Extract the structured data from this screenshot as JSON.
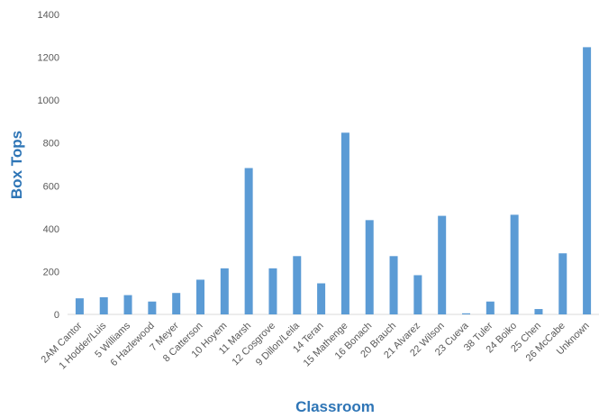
{
  "chart_data": {
    "type": "bar",
    "title": "",
    "xlabel": "Classroom",
    "ylabel": "Box Tops",
    "ylim": [
      0,
      1400
    ],
    "yticks": [
      0,
      200,
      400,
      600,
      800,
      1000,
      1200,
      1400
    ],
    "grid": false,
    "legend": "none",
    "bar_color": "#5b9bd5",
    "title_color": "#2e75b6",
    "categories": [
      "2AM Cantor",
      "1 Hodder/Luis",
      "5 Williams",
      "6 Hazlewood",
      "7 Meyer",
      "8 Catterson",
      "10 Hoyem",
      "11 Marsh",
      "12 Cosgrove",
      "9 Dillon/Leila",
      "14 Teran",
      "15 Mathenge",
      "16 Bonach",
      "20 Brauch",
      "21 Alvarez",
      "22 Wilson",
      "23 Cueva",
      "38 Tuler",
      "24 Boiko",
      "25 Chen",
      "26 McCabe",
      "Unknown"
    ],
    "values": [
      75,
      80,
      90,
      60,
      100,
      162,
      215,
      683,
      215,
      272,
      145,
      848,
      440,
      272,
      183,
      460,
      5,
      60,
      465,
      25,
      285,
      1247
    ]
  }
}
